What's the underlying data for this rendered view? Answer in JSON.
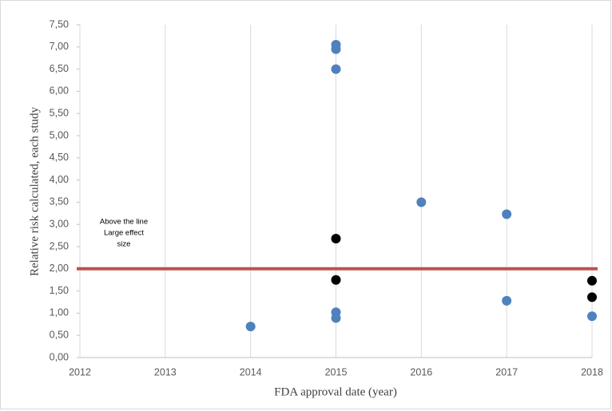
{
  "chart_data": {
    "type": "scatter",
    "x_label": "FDA approval date (year)",
    "y_label": "Relative risk calculated, each study",
    "xlim": [
      2012,
      2018
    ],
    "xticks": [
      2012,
      2013,
      2014,
      2015,
      2016,
      2017,
      2018
    ],
    "ylim": [
      0,
      7.5
    ],
    "yticks": [
      {
        "value": 0,
        "label": "0,00"
      },
      {
        "value": 0.5,
        "label": "0,50"
      },
      {
        "value": 1,
        "label": "1,00"
      },
      {
        "value": 1.5,
        "label": "1,50"
      },
      {
        "value": 2,
        "label": "2,00"
      },
      {
        "value": 2.5,
        "label": "2,50"
      },
      {
        "value": 3,
        "label": "3,00"
      },
      {
        "value": 3.5,
        "label": "3,50"
      },
      {
        "value": 4,
        "label": "4,00"
      },
      {
        "value": 4.5,
        "label": "4,50"
      },
      {
        "value": 5,
        "label": "5,00"
      },
      {
        "value": 5.5,
        "label": "5,50"
      },
      {
        "value": 6,
        "label": "6,00"
      },
      {
        "value": 6.5,
        "label": "6,50"
      },
      {
        "value": 7,
        "label": "7,00"
      },
      {
        "value": 7.5,
        "label": "7,50"
      }
    ],
    "grid": "x",
    "series": [
      {
        "color": "#4f81bd",
        "x": [
          2015,
          2015,
          2015,
          2016,
          2017,
          2017,
          2014,
          2015,
          2015,
          2018
        ],
        "values": [
          7.05,
          6.95,
          6.5,
          3.5,
          3.23,
          1.28,
          0.7,
          1.02,
          0.89,
          0.93
        ]
      },
      {
        "color": "#000000",
        "x": [
          2015,
          2015,
          2018,
          2018
        ],
        "values": [
          2.68,
          1.75,
          1.73,
          1.36
        ]
      }
    ],
    "reference_line": {
      "value": 2,
      "color": "#c0504d"
    },
    "annotation": [
      "Above the line",
      "Large effect",
      "size"
    ]
  }
}
